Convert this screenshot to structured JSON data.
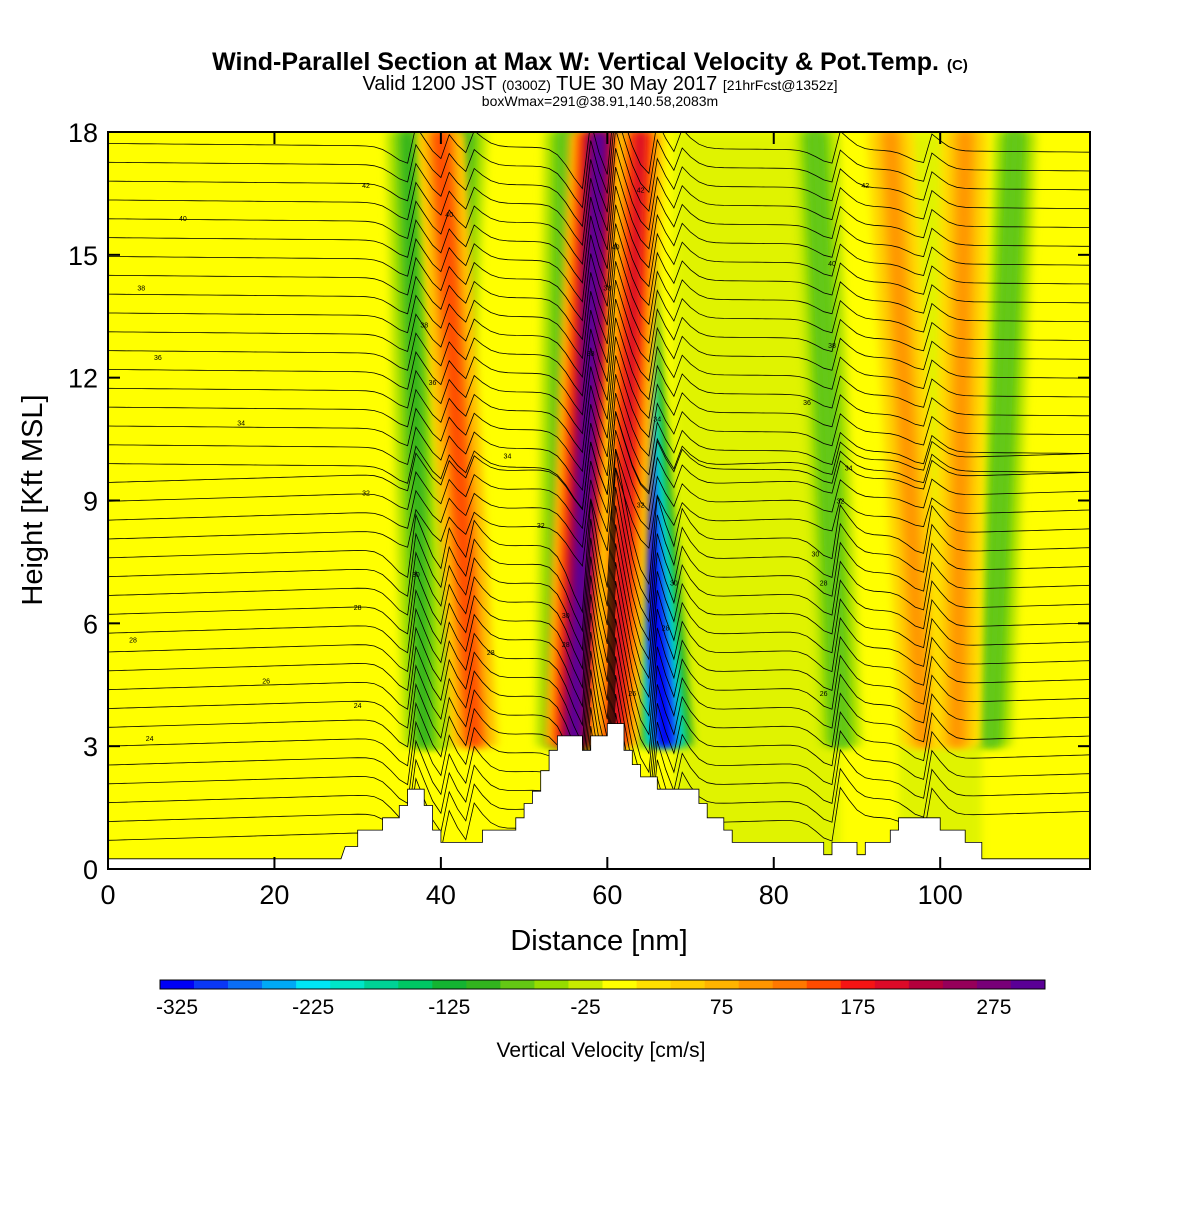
{
  "title": {
    "main": "Wind-Parallel Section at Max W: Vertical Velocity & Pot.Temp.",
    "copyright": "(C)",
    "valid_prefix": "Valid 1200 JST",
    "valid_utc": "(0300Z)",
    "valid_date": "TUE 30 May 2017",
    "forecast": "[21hrFcst@1352z]",
    "boxline": "boxWmax=291@38.91,140.58,2083m"
  },
  "colorbar": {
    "label": "Vertical Velocity [cm/s]",
    "tick_labels": [
      "-325",
      "-225",
      "-125",
      "-25",
      "75",
      "175",
      "275"
    ],
    "colors": [
      "#0000f5",
      "#0a37f5",
      "#0a6ef5",
      "#00aaf5",
      "#00e6f5",
      "#00e6c8",
      "#00d296",
      "#00c864",
      "#14b432",
      "#32b41e",
      "#64c814",
      "#96dc00",
      "#c8eb00",
      "#ffff00",
      "#ffe100",
      "#ffcd00",
      "#ffb400",
      "#ff9600",
      "#ff7800",
      "#ff4b00",
      "#f51414",
      "#dc0a28",
      "#b4003c",
      "#96005a",
      "#780078",
      "#5a0096"
    ]
  },
  "chart_data": {
    "type": "heatmap",
    "xlabel": "Distance [nm]",
    "ylabel": "Height [Kft MSL]",
    "xlim": [
      0,
      118
    ],
    "ylim": [
      0,
      18
    ],
    "x_ticks": [
      0,
      20,
      40,
      60,
      80,
      100
    ],
    "y_ticks": [
      0,
      3,
      6,
      9,
      12,
      15,
      18
    ],
    "field": "Vertical Velocity [cm/s]",
    "contour_field": "Potential Temperature (C)",
    "max_w": 291,
    "updraft_bands": [
      {
        "x_top": 40,
        "x_bottom": 44,
        "peak_cm_s": 150
      },
      {
        "x_top": 59,
        "x_bottom": 56,
        "peak_cm_s": 291
      },
      {
        "x_top": 64,
        "x_bottom": 61,
        "peak_cm_s": 200
      },
      {
        "x_top": 94,
        "x_bottom": 98,
        "peak_cm_s": 100
      },
      {
        "x_top": 103,
        "x_bottom": 102,
        "peak_cm_s": 100
      }
    ],
    "downdraft_bands": [
      {
        "x_top": 61,
        "x_bottom": 67,
        "peak_cm_s": -325
      },
      {
        "x_top": 43,
        "x_bottom": 39,
        "peak_cm_s": -100
      },
      {
        "x_top": 36,
        "x_bottom": 38,
        "peak_cm_s": -100
      },
      {
        "x_top": 55,
        "x_bottom": 54,
        "peak_cm_s": -80
      },
      {
        "x_top": 85,
        "x_bottom": 88,
        "peak_cm_s": -80
      },
      {
        "x_top": 109,
        "x_bottom": 106,
        "peak_cm_s": -80
      }
    ],
    "terrain": [
      [
        0,
        0.25
      ],
      [
        28,
        0.25
      ],
      [
        28.5,
        0.55
      ],
      [
        30,
        0.55
      ],
      [
        30,
        0.95
      ],
      [
        33,
        0.95
      ],
      [
        33,
        1.25
      ],
      [
        35,
        1.25
      ],
      [
        35,
        1.55
      ],
      [
        36,
        1.55
      ],
      [
        36,
        1.95
      ],
      [
        38,
        1.95
      ],
      [
        38,
        1.55
      ],
      [
        39,
        1.55
      ],
      [
        39,
        0.95
      ],
      [
        40,
        0.95
      ],
      [
        40,
        0.65
      ],
      [
        45,
        0.65
      ],
      [
        45,
        0.95
      ],
      [
        49,
        0.95
      ],
      [
        49,
        1.25
      ],
      [
        50,
        1.25
      ],
      [
        50,
        1.6
      ],
      [
        51,
        1.6
      ],
      [
        51,
        1.9
      ],
      [
        52,
        1.9
      ],
      [
        52,
        2.4
      ],
      [
        53,
        2.4
      ],
      [
        53,
        2.9
      ],
      [
        54,
        2.9
      ],
      [
        54,
        3.25
      ],
      [
        57,
        3.25
      ],
      [
        57,
        2.9
      ],
      [
        58,
        2.9
      ],
      [
        58,
        3.25
      ],
      [
        60,
        3.25
      ],
      [
        60,
        3.55
      ],
      [
        62,
        3.55
      ],
      [
        62,
        2.9
      ],
      [
        63,
        2.9
      ],
      [
        63,
        2.55
      ],
      [
        64,
        2.55
      ],
      [
        64,
        2.25
      ],
      [
        66,
        2.25
      ],
      [
        66,
        1.95
      ],
      [
        71,
        1.95
      ],
      [
        71,
        1.6
      ],
      [
        72,
        1.6
      ],
      [
        72,
        1.25
      ],
      [
        74,
        1.25
      ],
      [
        74,
        0.95
      ],
      [
        75,
        0.95
      ],
      [
        75,
        0.65
      ],
      [
        86,
        0.65
      ],
      [
        86,
        0.35
      ],
      [
        87,
        0.35
      ],
      [
        87,
        0.65
      ],
      [
        90,
        0.65
      ],
      [
        90,
        0.35
      ],
      [
        91,
        0.35
      ],
      [
        91,
        0.65
      ],
      [
        94,
        0.65
      ],
      [
        94,
        0.95
      ],
      [
        95,
        0.95
      ],
      [
        95,
        1.25
      ],
      [
        100,
        1.25
      ],
      [
        100,
        0.95
      ],
      [
        103,
        0.95
      ],
      [
        103,
        0.65
      ],
      [
        105,
        0.65
      ],
      [
        105,
        0.25
      ],
      [
        118,
        0.25
      ]
    ],
    "isentrope_labels": [
      {
        "text": "42",
        "x": 31,
        "y": 16.7
      },
      {
        "text": "40",
        "x": 9,
        "y": 15.9
      },
      {
        "text": "40",
        "x": 41,
        "y": 16.0
      },
      {
        "text": "42",
        "x": 64,
        "y": 16.6
      },
      {
        "text": "42",
        "x": 91,
        "y": 16.7
      },
      {
        "text": "38",
        "x": 4,
        "y": 14.2
      },
      {
        "text": "40",
        "x": 61,
        "y": 15.2
      },
      {
        "text": "40",
        "x": 87,
        "y": 14.8
      },
      {
        "text": "38",
        "x": 60,
        "y": 14.2
      },
      {
        "text": "38",
        "x": 38,
        "y": 13.3
      },
      {
        "text": "38",
        "x": 58,
        "y": 12.6
      },
      {
        "text": "38",
        "x": 87,
        "y": 12.8
      },
      {
        "text": "36",
        "x": 6,
        "y": 12.5
      },
      {
        "text": "36",
        "x": 39,
        "y": 11.9
      },
      {
        "text": "36",
        "x": 84,
        "y": 11.4
      },
      {
        "text": "34",
        "x": 16,
        "y": 10.9
      },
      {
        "text": "34",
        "x": 66,
        "y": 11.0
      },
      {
        "text": "34",
        "x": 48,
        "y": 10.1
      },
      {
        "text": "34",
        "x": 89,
        "y": 9.8
      },
      {
        "text": "32",
        "x": 31,
        "y": 9.2
      },
      {
        "text": "32",
        "x": 88,
        "y": 9.0
      },
      {
        "text": "32",
        "x": 64,
        "y": 8.9
      },
      {
        "text": "32",
        "x": 52,
        "y": 8.4
      },
      {
        "text": "30",
        "x": 37,
        "y": 7.2
      },
      {
        "text": "30",
        "x": 85,
        "y": 7.7
      },
      {
        "text": "30",
        "x": 68,
        "y": 7.0
      },
      {
        "text": "28",
        "x": 30,
        "y": 6.4
      },
      {
        "text": "28",
        "x": 86,
        "y": 7.0
      },
      {
        "text": "30",
        "x": 55,
        "y": 6.2
      },
      {
        "text": "28",
        "x": 67,
        "y": 5.9
      },
      {
        "text": "28",
        "x": 3,
        "y": 5.6
      },
      {
        "text": "28",
        "x": 46,
        "y": 5.3
      },
      {
        "text": "28",
        "x": 55,
        "y": 5.5
      },
      {
        "text": "26",
        "x": 19,
        "y": 4.6
      },
      {
        "text": "26",
        "x": 63,
        "y": 4.3
      },
      {
        "text": "26",
        "x": 86,
        "y": 4.3
      },
      {
        "text": "24",
        "x": 30,
        "y": 4.0
      },
      {
        "text": "24",
        "x": 5,
        "y": 3.2
      }
    ]
  }
}
